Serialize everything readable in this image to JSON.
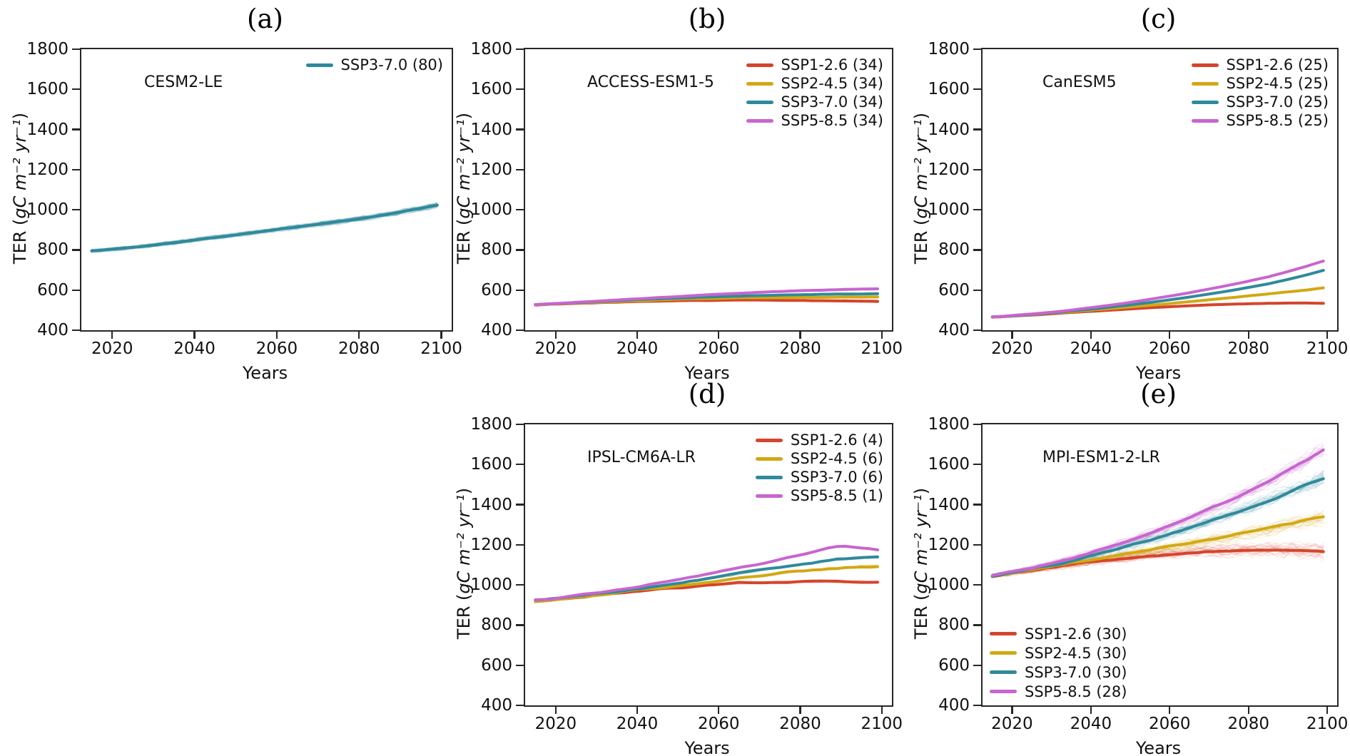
{
  "figure": {
    "xlabel": "Years",
    "ylabel": {
      "pre": "TER (",
      "units": "gC  m⁻²  yr⁻¹",
      "post": ")"
    }
  },
  "colors": {
    "SSP1-2.6": "#d5442c",
    "SSP2-4.5": "#d2a813",
    "SSP3-7.0": "#2f8a9b",
    "SSP5-8.5": "#c865cf"
  },
  "chart_data": [
    {
      "id": "a",
      "type": "line",
      "title": "(a)",
      "model": "CESM2-LE",
      "xlabel": "Years",
      "ylabel": "TER (gC m⁻² yr⁻¹)",
      "xlim": [
        2012.5,
        2102.5
      ],
      "ylim": [
        400,
        1800
      ],
      "xticks": [
        2020,
        2040,
        2060,
        2080,
        2100
      ],
      "yticks": [
        400,
        600,
        800,
        1000,
        1200,
        1400,
        1600,
        1800
      ],
      "legend_position": "upper-right",
      "grid": false,
      "x": [
        2015,
        2020,
        2025,
        2030,
        2035,
        2040,
        2045,
        2050,
        2055,
        2060,
        2065,
        2070,
        2075,
        2080,
        2085,
        2090,
        2095,
        2100
      ],
      "series": [
        {
          "name": "SSP3-7.0",
          "label": "SSP3-7.0 (80)",
          "members": 80,
          "values": [
            795,
            803,
            813,
            824,
            836,
            849,
            862,
            875,
            888,
            901,
            914,
            927,
            941,
            955,
            971,
            988,
            1007,
            1028
          ]
        }
      ]
    },
    {
      "id": "b",
      "type": "line",
      "title": "(b)",
      "model": "ACCESS-ESM1-5",
      "xlabel": "Years",
      "ylabel": "TER (gC m⁻² yr⁻¹)",
      "xlim": [
        2012.5,
        2102.5
      ],
      "ylim": [
        400,
        1800
      ],
      "xticks": [
        2020,
        2040,
        2060,
        2080,
        2100
      ],
      "yticks": [
        400,
        600,
        800,
        1000,
        1200,
        1400,
        1600,
        1800
      ],
      "legend_position": "upper-right",
      "grid": false,
      "x": [
        2015,
        2020,
        2025,
        2030,
        2035,
        2040,
        2045,
        2050,
        2055,
        2060,
        2065,
        2070,
        2075,
        2080,
        2085,
        2090,
        2095,
        2100
      ],
      "series": [
        {
          "name": "SSP1-2.6",
          "label": "SSP1-2.6 (34)",
          "members": 34,
          "values": [
            526,
            530,
            534,
            537,
            540,
            543,
            545,
            547,
            548,
            549,
            550,
            550,
            549,
            548,
            547,
            546,
            545,
            544
          ]
        },
        {
          "name": "SSP2-4.5",
          "label": "SSP2-4.5 (34)",
          "members": 34,
          "values": [
            526,
            531,
            535,
            539,
            543,
            547,
            551,
            554,
            557,
            559,
            561,
            562,
            563,
            564,
            564,
            565,
            565,
            566
          ]
        },
        {
          "name": "SSP3-7.0",
          "label": "SSP3-7.0 (34)",
          "members": 34,
          "values": [
            527,
            532,
            537,
            542,
            547,
            552,
            556,
            560,
            564,
            567,
            570,
            573,
            575,
            577,
            579,
            580,
            581,
            582
          ]
        },
        {
          "name": "SSP5-8.5",
          "label": "SSP5-8.5 (34)",
          "members": 34,
          "values": [
            528,
            533,
            539,
            545,
            551,
            557,
            563,
            568,
            574,
            579,
            584,
            589,
            593,
            597,
            600,
            603,
            605,
            607
          ]
        }
      ]
    },
    {
      "id": "c",
      "type": "line",
      "title": "(c)",
      "model": "CanESM5",
      "xlabel": "Years",
      "ylabel": "TER (gC m⁻² yr⁻¹)",
      "xlim": [
        2012.5,
        2102.5
      ],
      "ylim": [
        400,
        1800
      ],
      "xticks": [
        2020,
        2040,
        2060,
        2080,
        2100
      ],
      "yticks": [
        400,
        600,
        800,
        1000,
        1200,
        1400,
        1600,
        1800
      ],
      "legend_position": "upper-right",
      "grid": false,
      "x": [
        2015,
        2020,
        2025,
        2030,
        2035,
        2040,
        2045,
        2050,
        2055,
        2060,
        2065,
        2070,
        2075,
        2080,
        2085,
        2090,
        2095,
        2100
      ],
      "series": [
        {
          "name": "SSP1-2.6",
          "label": "SSP1-2.6 (25)",
          "members": 25,
          "values": [
            465,
            470,
            476,
            482,
            488,
            494,
            500,
            506,
            512,
            517,
            522,
            526,
            529,
            532,
            534,
            535,
            535,
            534
          ]
        },
        {
          "name": "SSP2-4.5",
          "label": "SSP2-4.5 (25)",
          "members": 25,
          "values": [
            465,
            471,
            478,
            485,
            492,
            500,
            508,
            516,
            524,
            533,
            542,
            551,
            561,
            571,
            581,
            591,
            601,
            613
          ]
        },
        {
          "name": "SSP3-7.0",
          "label": "SSP3-7.0 (25)",
          "members": 25,
          "values": [
            466,
            472,
            479,
            487,
            496,
            505,
            515,
            526,
            538,
            551,
            565,
            580,
            596,
            613,
            631,
            653,
            677,
            704
          ]
        },
        {
          "name": "SSP5-8.5",
          "label": "SSP5-8.5 (25)",
          "members": 25,
          "values": [
            466,
            473,
            481,
            490,
            500,
            512,
            525,
            539,
            554,
            570,
            587,
            605,
            624,
            644,
            666,
            692,
            720,
            751
          ]
        }
      ]
    },
    {
      "id": "d",
      "type": "line",
      "title": "(d)",
      "model": "IPSL-CM6A-LR",
      "xlabel": "Years",
      "ylabel": "TER (gC m⁻² yr⁻¹)",
      "xlim": [
        2012.5,
        2102.5
      ],
      "ylim": [
        400,
        1800
      ],
      "xticks": [
        2020,
        2040,
        2060,
        2080,
        2100
      ],
      "yticks": [
        400,
        600,
        800,
        1000,
        1200,
        1400,
        1600,
        1800
      ],
      "legend_position": "upper-right",
      "grid": false,
      "x": [
        2015,
        2020,
        2025,
        2030,
        2035,
        2040,
        2045,
        2050,
        2055,
        2060,
        2065,
        2070,
        2075,
        2080,
        2085,
        2090,
        2095,
        2100
      ],
      "series": [
        {
          "name": "SSP1-2.6",
          "label": "SSP1-2.6 (4)",
          "members": 4,
          "values": [
            918,
            927,
            937,
            947,
            957,
            967,
            977,
            987,
            995,
            1002,
            1008,
            1013,
            1016,
            1018,
            1018,
            1017,
            1015,
            1012
          ]
        },
        {
          "name": "SSP2-4.5",
          "label": "SSP2-4.5 (6)",
          "members": 6,
          "values": [
            919,
            928,
            939,
            950,
            961,
            972,
            983,
            995,
            1008,
            1020,
            1033,
            1046,
            1058,
            1068,
            1077,
            1084,
            1090,
            1096
          ]
        },
        {
          "name": "SSP3-7.0",
          "label": "SSP3-7.0 (6)",
          "members": 6,
          "values": [
            921,
            930,
            941,
            953,
            966,
            980,
            994,
            1009,
            1024,
            1040,
            1056,
            1072,
            1088,
            1103,
            1117,
            1128,
            1136,
            1142
          ]
        },
        {
          "name": "SSP5-8.5",
          "label": "SSP5-8.5 (1)",
          "members": 1,
          "values": [
            924,
            934,
            946,
            959,
            973,
            989,
            1006,
            1024,
            1043,
            1062,
            1082,
            1102,
            1125,
            1150,
            1175,
            1195,
            1185,
            1170
          ]
        }
      ]
    },
    {
      "id": "e",
      "type": "line",
      "title": "(e)",
      "model": "MPI-ESM1-2-LR",
      "xlabel": "Years",
      "ylabel": "TER (gC m⁻² yr⁻¹)",
      "xlim": [
        2012.5,
        2102.5
      ],
      "ylim": [
        400,
        1800
      ],
      "xticks": [
        2020,
        2040,
        2060,
        2080,
        2100
      ],
      "yticks": [
        400,
        600,
        800,
        1000,
        1200,
        1400,
        1600,
        1800
      ],
      "legend_position": "lower-left",
      "grid": false,
      "x": [
        2015,
        2020,
        2025,
        2030,
        2035,
        2040,
        2045,
        2050,
        2055,
        2060,
        2065,
        2070,
        2075,
        2080,
        2085,
        2090,
        2095,
        2100
      ],
      "series": [
        {
          "name": "SSP1-2.6",
          "label": "SSP1-2.6 (30)",
          "members": 30,
          "values": [
            1045,
            1058,
            1072,
            1086,
            1100,
            1113,
            1125,
            1136,
            1146,
            1154,
            1161,
            1166,
            1170,
            1172,
            1173,
            1172,
            1170,
            1165
          ]
        },
        {
          "name": "SSP2-4.5",
          "label": "SSP2-4.5 (30)",
          "members": 30,
          "values": [
            1046,
            1060,
            1076,
            1092,
            1108,
            1124,
            1140,
            1157,
            1174,
            1191,
            1208,
            1226,
            1244,
            1263,
            1283,
            1304,
            1325,
            1345
          ]
        },
        {
          "name": "SSP3-7.0",
          "label": "SSP3-7.0 (30)",
          "members": 30,
          "values": [
            1047,
            1062,
            1080,
            1100,
            1121,
            1144,
            1169,
            1196,
            1224,
            1253,
            1284,
            1316,
            1349,
            1384,
            1420,
            1458,
            1498,
            1540
          ]
        },
        {
          "name": "SSP5-8.5",
          "label": "SSP5-8.5 (28)",
          "members": 28,
          "values": [
            1048,
            1065,
            1085,
            1108,
            1133,
            1161,
            1191,
            1224,
            1259,
            1296,
            1335,
            1377,
            1421,
            1467,
            1515,
            1570,
            1628,
            1690
          ]
        }
      ]
    }
  ]
}
